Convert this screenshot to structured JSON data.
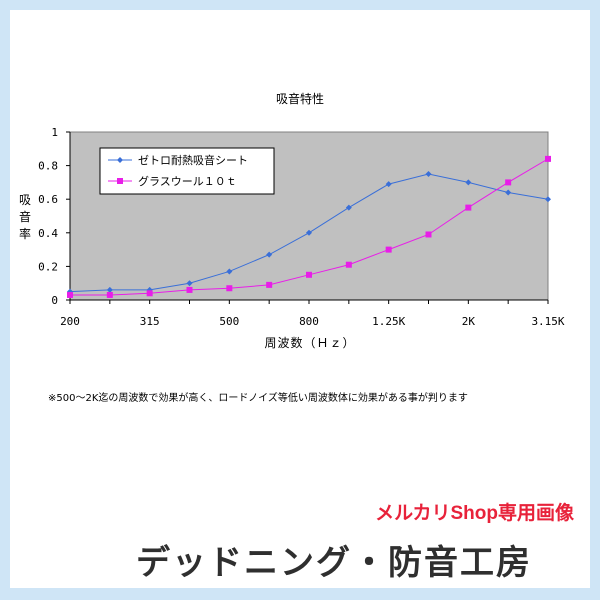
{
  "page": {
    "note": "※500～2K迄の周波数で効果が高く、ロードノイズ等低い周波数体に効果がある事が判ります",
    "watermark": "メルカリShop専用画像",
    "brand": "デッドニング・防音工房"
  },
  "colors": {
    "background": "#cfe5f6",
    "plot_area": "#c0c0c0",
    "series1": "#3a6fd8",
    "series2": "#e81ee8",
    "watermark": "#e8223a"
  },
  "chart_data": {
    "type": "line",
    "title": "吸音特性",
    "xlabel": "周波数（Ｈｚ）",
    "ylabel": "吸音率",
    "ylim": [
      0,
      1
    ],
    "yticks": [
      0,
      0.2,
      0.4,
      0.6,
      0.8,
      1
    ],
    "ytick_labels": [
      "0",
      "0.2",
      "0.4",
      "0.6",
      "0.8",
      "1"
    ],
    "x": [
      "200",
      "250",
      "315",
      "400",
      "500",
      "630",
      "800",
      "1K",
      "1.25K",
      "1.6K",
      "2K",
      "2.5K",
      "3.15K"
    ],
    "x_tick_labels": [
      "200",
      "",
      "315",
      "",
      "500",
      "",
      "800",
      "",
      "1.25K",
      "",
      "2K",
      "",
      "3.15K"
    ],
    "grid": false,
    "legend_position": "top-left",
    "series": [
      {
        "name": "ゼトロ耐熱吸音シート",
        "marker": "diamond",
        "values": [
          0.05,
          0.06,
          0.06,
          0.1,
          0.17,
          0.27,
          0.4,
          0.55,
          0.69,
          0.75,
          0.7,
          0.64,
          0.6
        ]
      },
      {
        "name": "グラスウール１０ｔ",
        "marker": "square",
        "values": [
          0.03,
          0.03,
          0.04,
          0.06,
          0.07,
          0.09,
          0.15,
          0.21,
          0.3,
          0.39,
          0.55,
          0.7,
          0.84
        ]
      }
    ]
  }
}
